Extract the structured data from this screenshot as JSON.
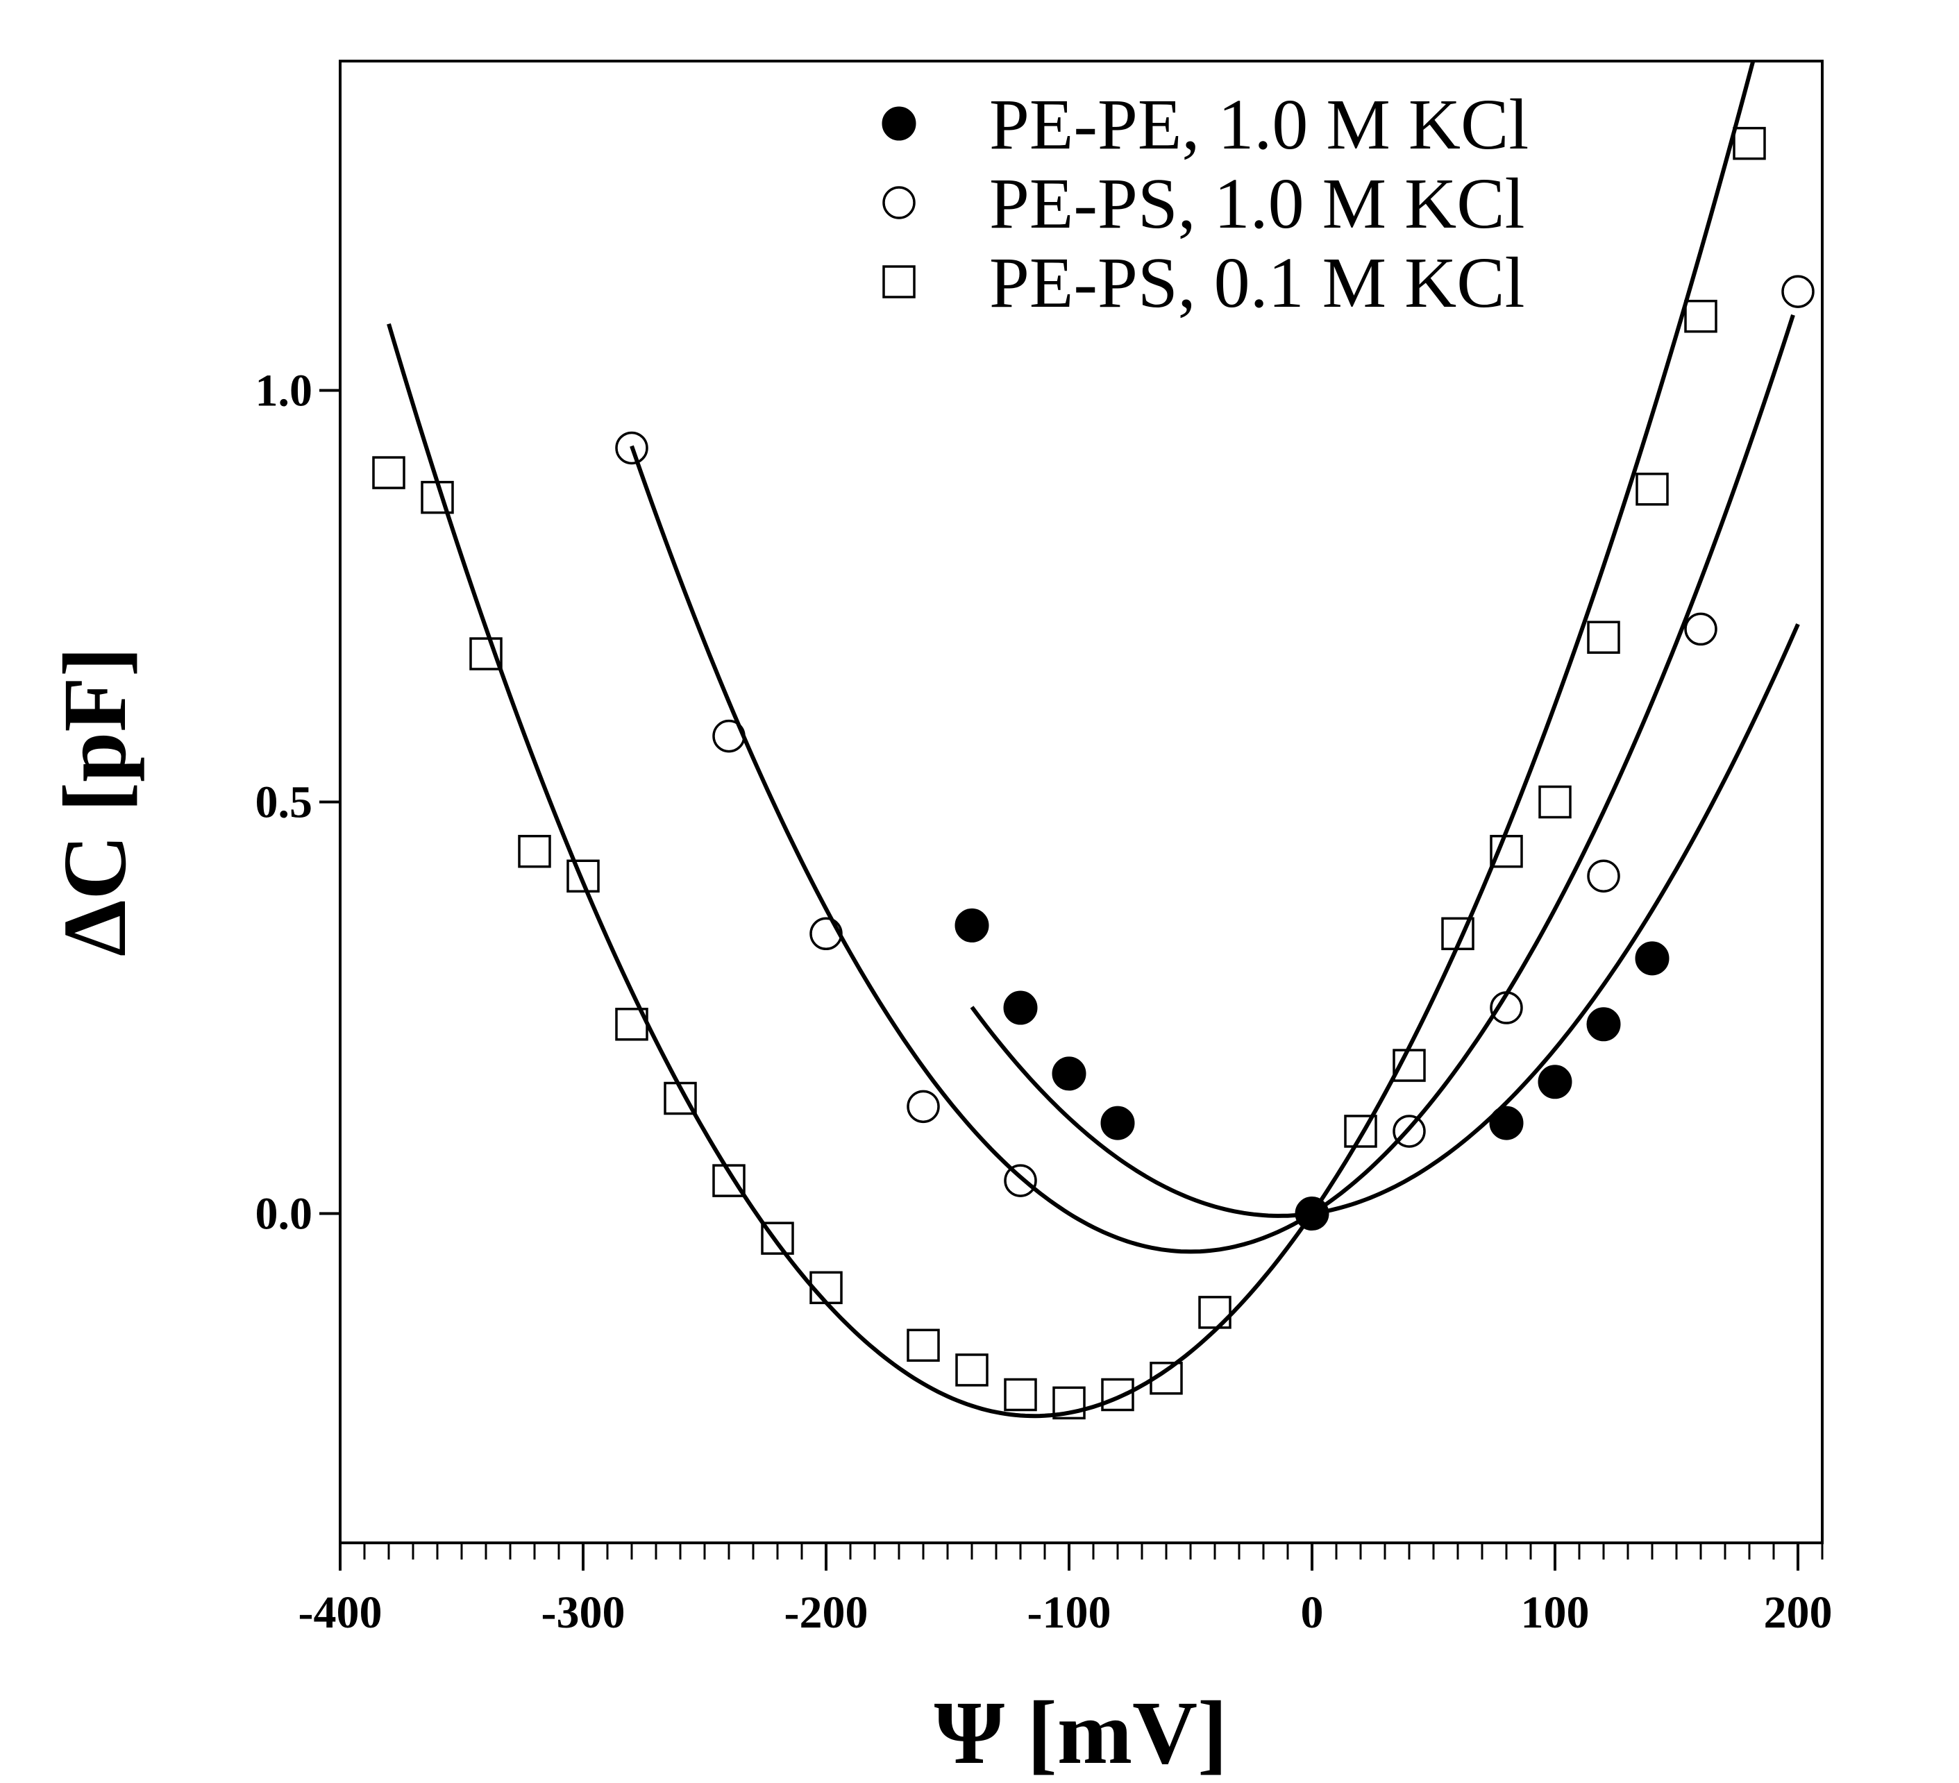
{
  "chart_data": {
    "type": "scatter",
    "title": "",
    "xlabel": "Ψ [mV]",
    "ylabel": "ΔC [pF]",
    "xlim": [
      -400,
      210
    ],
    "ylim": [
      -0.4,
      1.4
    ],
    "x_ticks": [
      -400,
      -300,
      -200,
      -100,
      0,
      100,
      200
    ],
    "x_tick_labels": [
      "-400",
      "-300",
      "-200",
      "-100",
      "0",
      "100",
      "200"
    ],
    "y_ticks": [
      0.0,
      0.5,
      1.0
    ],
    "y_tick_labels": [
      "0.0",
      "0.5",
      "1.0"
    ],
    "grid": false,
    "legend_position": "top-right",
    "series": [
      {
        "name": "PE-PE, 1.0 M KCl",
        "marker": "filled-circle",
        "x": [
          -140,
          -120,
          -100,
          -80,
          0,
          80,
          100,
          120,
          140
        ],
        "y": [
          0.35,
          0.25,
          0.17,
          0.11,
          0.0,
          0.11,
          0.16,
          0.23,
          0.31
        ],
        "fit": {
          "x_min": -140,
          "x_max": 200,
          "a": 1.58e-05,
          "b": 0.00042
        }
      },
      {
        "name": "PE-PS, 1.0 M KCl",
        "marker": "open-circle",
        "x": [
          -280,
          -240,
          -200,
          -160,
          -120,
          40,
          80,
          120,
          160,
          200
        ],
        "y": [
          0.93,
          0.58,
          0.34,
          0.13,
          0.04,
          0.1,
          0.25,
          0.41,
          0.71,
          1.12
        ],
        "fit": {
          "x_min": -280,
          "x_max": 198,
          "a": 1.85e-05,
          "b": 0.00185
        }
      },
      {
        "name": "PE-PS, 0.1 M KCl",
        "marker": "open-square",
        "x": [
          -380,
          -360,
          -340,
          -320,
          -300,
          -280,
          -260,
          -240,
          -220,
          -200,
          -160,
          -140,
          -120,
          -100,
          -80,
          -60,
          -40,
          20,
          40,
          60,
          80,
          100,
          120,
          140,
          160,
          180
        ],
        "y": [
          0.9,
          0.87,
          0.68,
          0.44,
          0.41,
          0.23,
          0.14,
          0.04,
          -0.03,
          -0.09,
          -0.16,
          -0.19,
          -0.22,
          -0.23,
          -0.22,
          -0.2,
          -0.12,
          0.1,
          0.18,
          0.34,
          0.44,
          0.5,
          0.7,
          0.88,
          1.09,
          1.3
        ],
        "fit": {
          "x_min": -380,
          "x_max": 190,
          "a": 1.88e-05,
          "b": 0.0043
        }
      }
    ]
  }
}
